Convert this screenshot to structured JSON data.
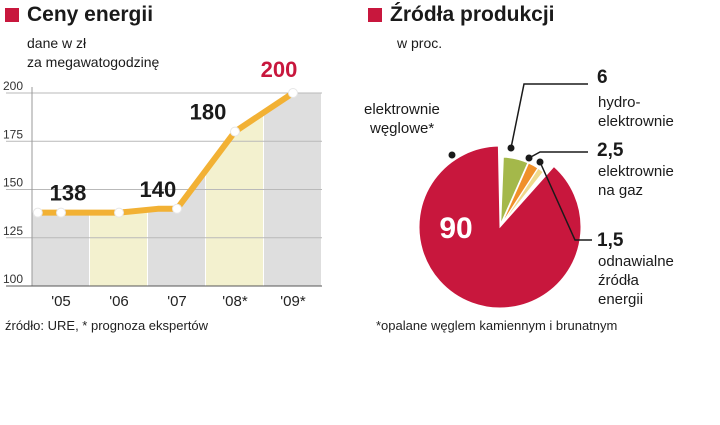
{
  "colors": {
    "accent": "#c8173d",
    "line": "#f2b134",
    "band_gray": "#dedede",
    "band_yellow": "#f3f1cf",
    "gas": "#f0902a",
    "hydro": "#a4b84a",
    "renewable": "#efd98d"
  },
  "left": {
    "title": "Ceny energii",
    "subtitle_line1": "dane w zł",
    "subtitle_line2": "za megawatogodzinę",
    "source": "źródło: URE, * prognoza ekspertów"
  },
  "right": {
    "title": "Źródła produkcji",
    "subtitle": "w proc.",
    "footnote": "*opalane węglem kamiennym i brunatnym"
  },
  "chart_data": [
    {
      "type": "line",
      "title": "Ceny energii",
      "subtitle": "dane w zł za megawatogodzinę",
      "x": [
        2005,
        2005.33,
        2006,
        2006.67,
        2007,
        2008,
        2009
      ],
      "y": [
        138,
        138,
        138,
        140,
        140,
        180,
        200
      ],
      "categories": [
        "'05",
        "'06",
        "'07",
        "'08*",
        "'09*"
      ],
      "category_x": [
        2005,
        2006,
        2007,
        2008,
        2009
      ],
      "data_labels": [
        {
          "x": 2005,
          "y": 138,
          "text": "138"
        },
        {
          "x": 2006.67,
          "y": 140,
          "text": "140"
        },
        {
          "x": 2008,
          "y": 180,
          "text": "180"
        },
        {
          "x": 2009,
          "y": 200,
          "text": "200"
        }
      ],
      "yticks": [
        100,
        125,
        150,
        175,
        200
      ],
      "ylim": [
        100,
        200
      ],
      "grid": true
    },
    {
      "type": "pie",
      "title": "Źródła produkcji",
      "subtitle": "w proc.",
      "slices": [
        {
          "name": "elektrownie węglowe*",
          "value": 90,
          "label": "90",
          "color": "#c8173d"
        },
        {
          "name": "hydro-elektrownie",
          "value": 6,
          "label": "6",
          "color": "#a4b84a"
        },
        {
          "name": "elektrownie na gaz",
          "value": 2.5,
          "label": "2,5",
          "color": "#f0902a"
        },
        {
          "name": "odnawialne źródła energii",
          "value": 1.5,
          "label": "1,5",
          "color": "#efd98d"
        }
      ],
      "labels": {
        "coal_line1": "elektrownie",
        "coal_line2": "węglowe*",
        "hydro_line1": "hydro-",
        "hydro_line2": "elektrownie",
        "gas_line1": "elektrownie",
        "gas_line2": "na gaz",
        "ren_line1": "odnawialne",
        "ren_line2": "źródła",
        "ren_line3": "energii"
      }
    }
  ]
}
